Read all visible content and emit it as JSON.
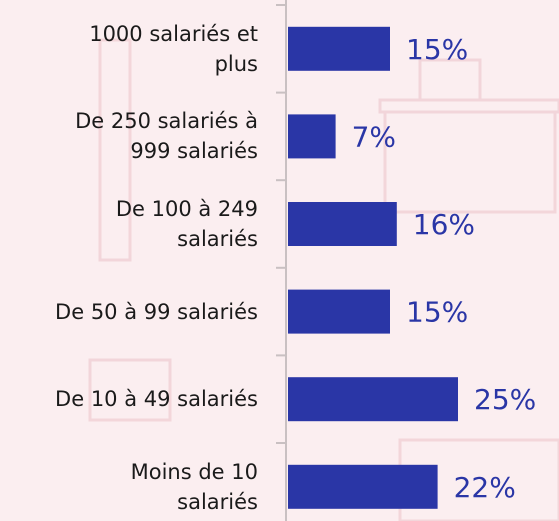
{
  "chart_data": {
    "type": "bar",
    "orientation": "horizontal",
    "categories": [
      "1000 salariés et\nplus",
      "De 250 salariés à\n999 salariés",
      "De 100 à 249\nsalariés",
      "De 50 à 99 salariés",
      "De 10 à 49 salariés",
      "Moins de 10\nsalariés"
    ],
    "values": [
      15,
      7,
      16,
      15,
      25,
      22
    ],
    "value_labels": [
      "15%",
      "7%",
      "16%",
      "15%",
      "25%",
      "22%"
    ],
    "color": "#2a36a6"
  }
}
